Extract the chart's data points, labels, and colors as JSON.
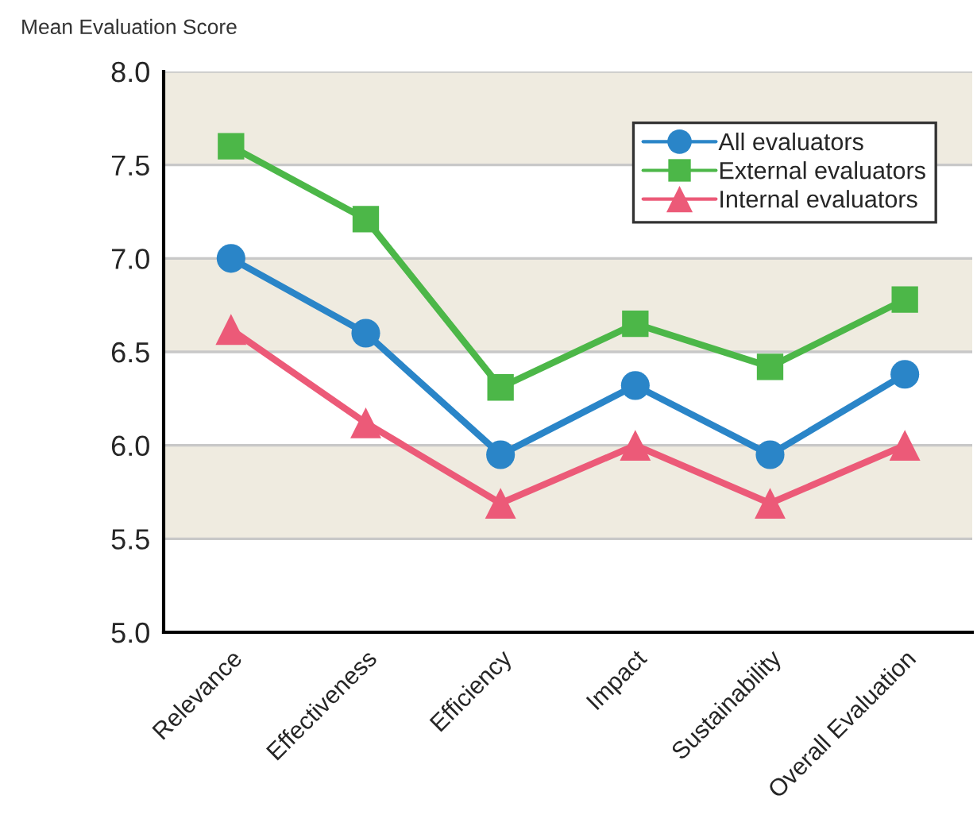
{
  "chart_data": {
    "type": "line",
    "ylabel": "Mean Evaluation Score",
    "categories": [
      "Relevance",
      "Effectiveness",
      "Efficiency",
      "Impact",
      "Sustainability",
      "Overall Evaluation"
    ],
    "series": [
      {
        "name": "All evaluators",
        "color": "#2a85c8",
        "marker": "circle",
        "values": [
          7.0,
          6.6,
          5.95,
          6.32,
          5.95,
          6.38
        ]
      },
      {
        "name": "External evaluators",
        "color": "#4cb748",
        "marker": "square",
        "values": [
          7.6,
          7.21,
          6.31,
          6.65,
          6.42,
          6.78
        ]
      },
      {
        "name": "Internal evaluators",
        "color": "#ec5a78",
        "marker": "triangle",
        "values": [
          6.62,
          6.12,
          5.69,
          6.0,
          5.69,
          6.0
        ]
      }
    ],
    "ylim": [
      5,
      8
    ],
    "yticks": [
      {
        "value": 5,
        "label": "5.0"
      },
      {
        "value": 5.5,
        "label": "5.5"
      },
      {
        "value": 6,
        "label": "6.0"
      },
      {
        "value": 6.5,
        "label": "6.5"
      },
      {
        "value": 7,
        "label": "7.0"
      },
      {
        "value": 7.5,
        "label": "7.5"
      },
      {
        "value": 8,
        "label": "8.0"
      }
    ],
    "bands": [
      {
        "axis": "y",
        "from": 5.5,
        "to": 6.0,
        "color": "#efebe0"
      },
      {
        "axis": "y",
        "from": 6.5,
        "to": 7.0,
        "color": "#efebe0"
      },
      {
        "axis": "y",
        "from": 7.5,
        "to": 8.0,
        "color": "#efebe0"
      }
    ],
    "grid": "y",
    "legend": "top right",
    "line_style": "solid"
  }
}
